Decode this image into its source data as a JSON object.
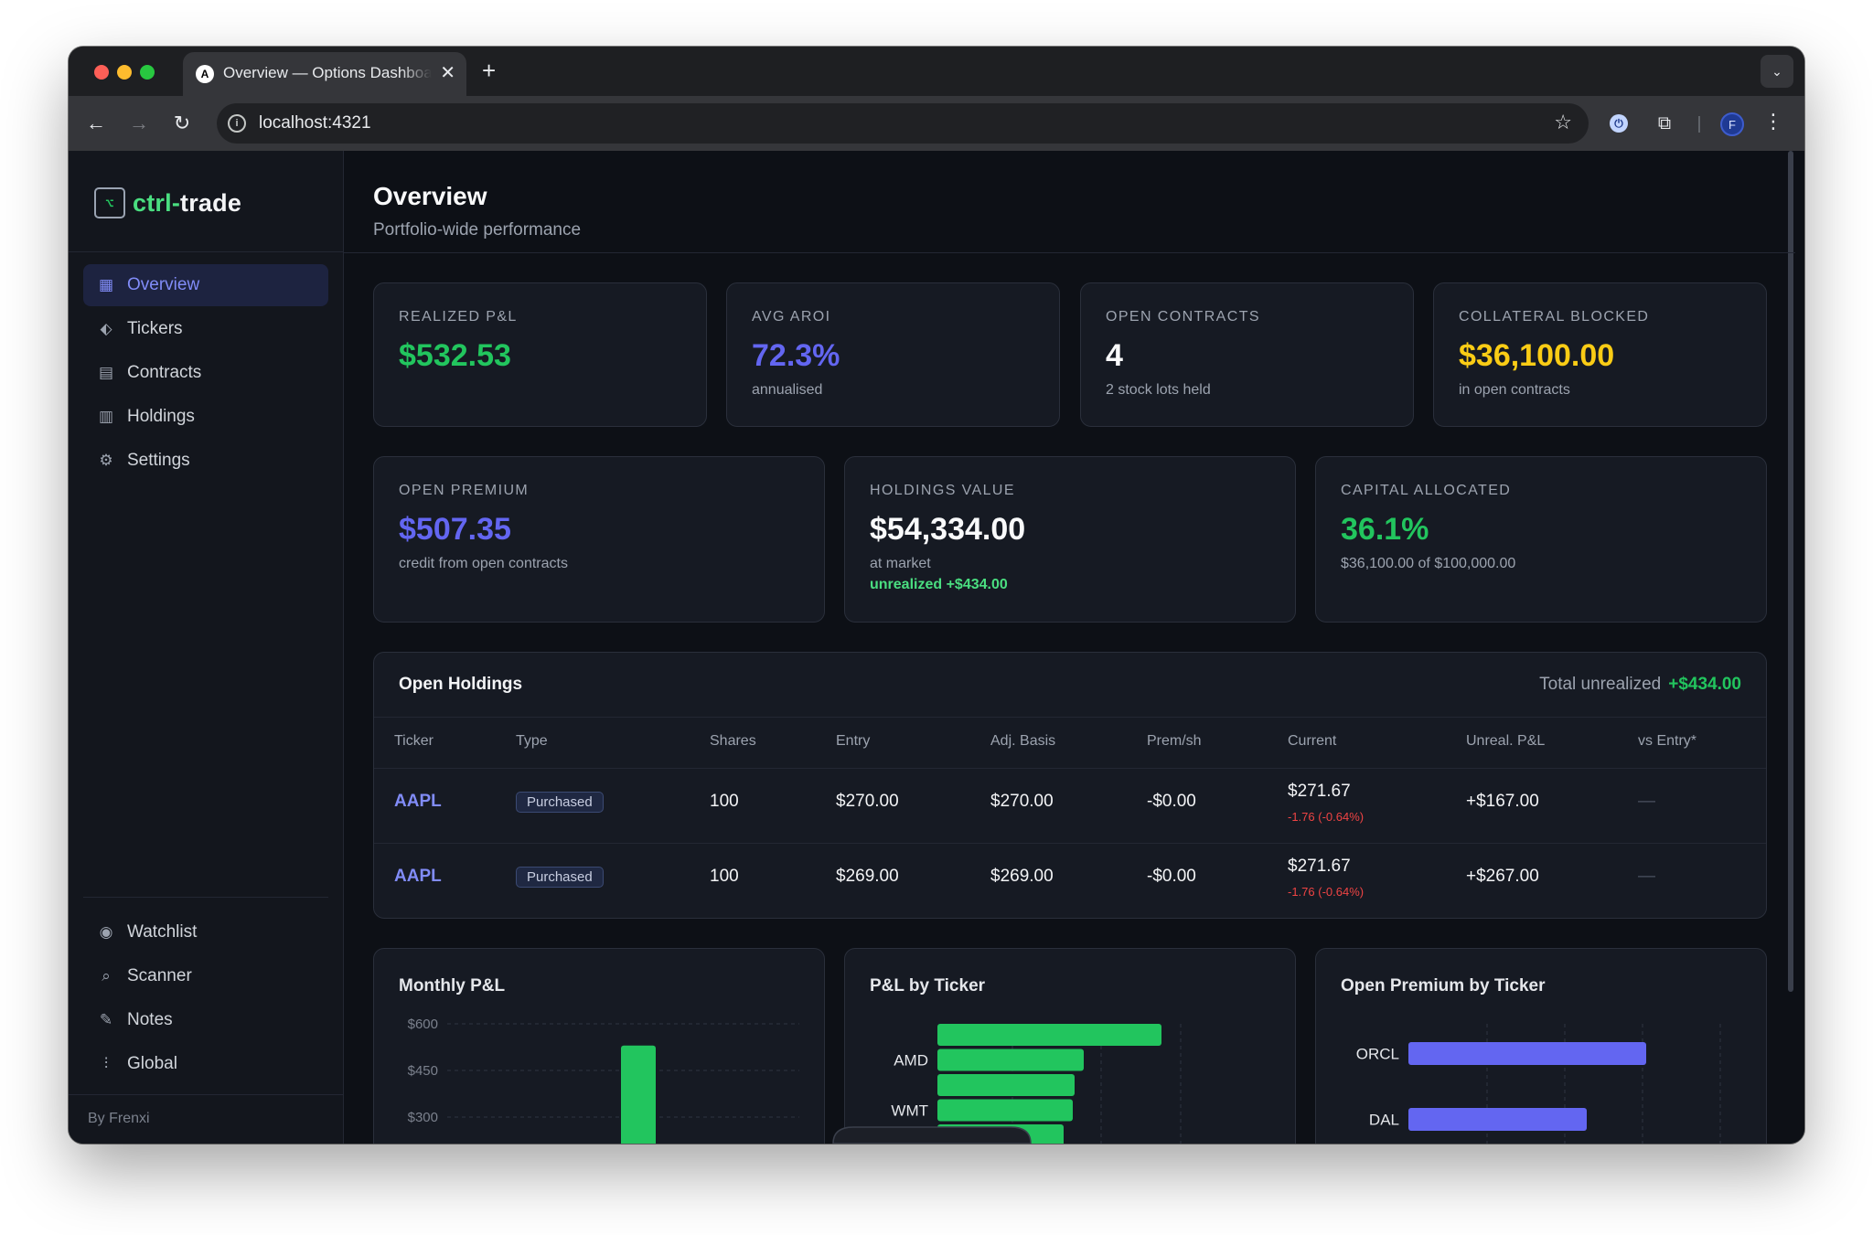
{
  "browser": {
    "tab_title": "Overview — Options Dashboard",
    "url": "localhost:4321",
    "profile_initial": "F"
  },
  "brand": {
    "name_prefix": "ctrl",
    "name_sep": "-",
    "name_suffix": "trade",
    "icon": "terminal-logo-icon"
  },
  "sidebar": {
    "nav": [
      {
        "label": "Overview",
        "icon": "grid-icon",
        "active": true
      },
      {
        "label": "Tickers",
        "icon": "tag-icon"
      },
      {
        "label": "Contracts",
        "icon": "document-icon"
      },
      {
        "label": "Holdings",
        "icon": "building-icon"
      },
      {
        "label": "Settings",
        "icon": "gear-icon"
      }
    ],
    "secondary": [
      {
        "label": "Watchlist",
        "icon": "eye-icon"
      },
      {
        "label": "Scanner",
        "icon": "search-icon"
      },
      {
        "label": "Notes",
        "icon": "edit-icon"
      },
      {
        "label": "Global",
        "icon": "sliders-icon"
      }
    ],
    "byline": "By Frenxi"
  },
  "header": {
    "title": "Overview",
    "subtitle": "Portfolio-wide performance"
  },
  "stats_row1": [
    {
      "label": "REALIZED P&L",
      "value": "$532.53",
      "sub": "",
      "color": "#22c55e"
    },
    {
      "label": "AVG AROI",
      "value": "72.3%",
      "sub": "annualised",
      "color": "#6366f1"
    },
    {
      "label": "OPEN CONTRACTS",
      "value": "4",
      "sub": "2 stock lots held",
      "color": "#f9fafb"
    },
    {
      "label": "COLLATERAL BLOCKED",
      "value": "$36,100.00",
      "sub": "in open contracts",
      "color": "#facc15"
    }
  ],
  "stats_row2": [
    {
      "label": "OPEN PREMIUM",
      "value": "$507.35",
      "sub": "credit from open contracts",
      "sub2": "",
      "color": "#6366f1"
    },
    {
      "label": "HOLDINGS VALUE",
      "value": "$54,334.00",
      "sub": "at market",
      "sub2": "unrealized +$434.00",
      "color": "#f9fafb"
    },
    {
      "label": "CAPITAL ALLOCATED",
      "value": "36.1%",
      "sub": "$36,100.00 of $100,000.00",
      "sub2": "",
      "color": "#22c55e"
    }
  ],
  "holdings": {
    "title": "Open Holdings",
    "total_label": "Total unrealized",
    "total_value": "+$434.00",
    "columns": [
      "Ticker",
      "Type",
      "Shares",
      "Entry",
      "Adj. Basis",
      "Prem/sh",
      "Current",
      "Unreal. P&L",
      "vs Entry*"
    ],
    "rows": [
      {
        "ticker": "AAPL",
        "type": "Purchased",
        "shares": "100",
        "entry": "$270.00",
        "basis": "$270.00",
        "prem": "-$0.00",
        "current": "$271.67",
        "change": "-1.76 (-0.64%)",
        "unreal": "+$167.00",
        "vs_entry": "—"
      },
      {
        "ticker": "AAPL",
        "type": "Purchased",
        "shares": "100",
        "entry": "$269.00",
        "basis": "$269.00",
        "prem": "-$0.00",
        "current": "$271.67",
        "change": "-1.76 (-0.64%)",
        "unreal": "+$267.00",
        "vs_entry": "—"
      }
    ]
  },
  "chart_data": [
    {
      "type": "bar",
      "title": "Monthly P&L",
      "yticks": [
        "$600",
        "$450",
        "$300"
      ],
      "ytick_values": [
        600,
        450,
        300
      ],
      "ylim": [
        300,
        600
      ],
      "categories": [
        ""
      ],
      "values": [
        530
      ],
      "color": "#22c55e",
      "grid": true
    },
    {
      "type": "bar",
      "orientation": "horizontal",
      "title": "P&L by Ticker",
      "categories": [
        "",
        "AMD",
        "",
        "WMT",
        ""
      ],
      "values": [
        245,
        160,
        150,
        148,
        138
      ],
      "xlim": [
        0,
        275
      ],
      "color": "#22c55e",
      "grid": true
    },
    {
      "type": "bar",
      "orientation": "horizontal",
      "title": "Open Premium by Ticker",
      "categories": [
        "ORCL",
        "DAL"
      ],
      "values": [
        260,
        195
      ],
      "xlim": [
        0,
        273
      ],
      "color": "#6366f1",
      "grid": true
    }
  ]
}
